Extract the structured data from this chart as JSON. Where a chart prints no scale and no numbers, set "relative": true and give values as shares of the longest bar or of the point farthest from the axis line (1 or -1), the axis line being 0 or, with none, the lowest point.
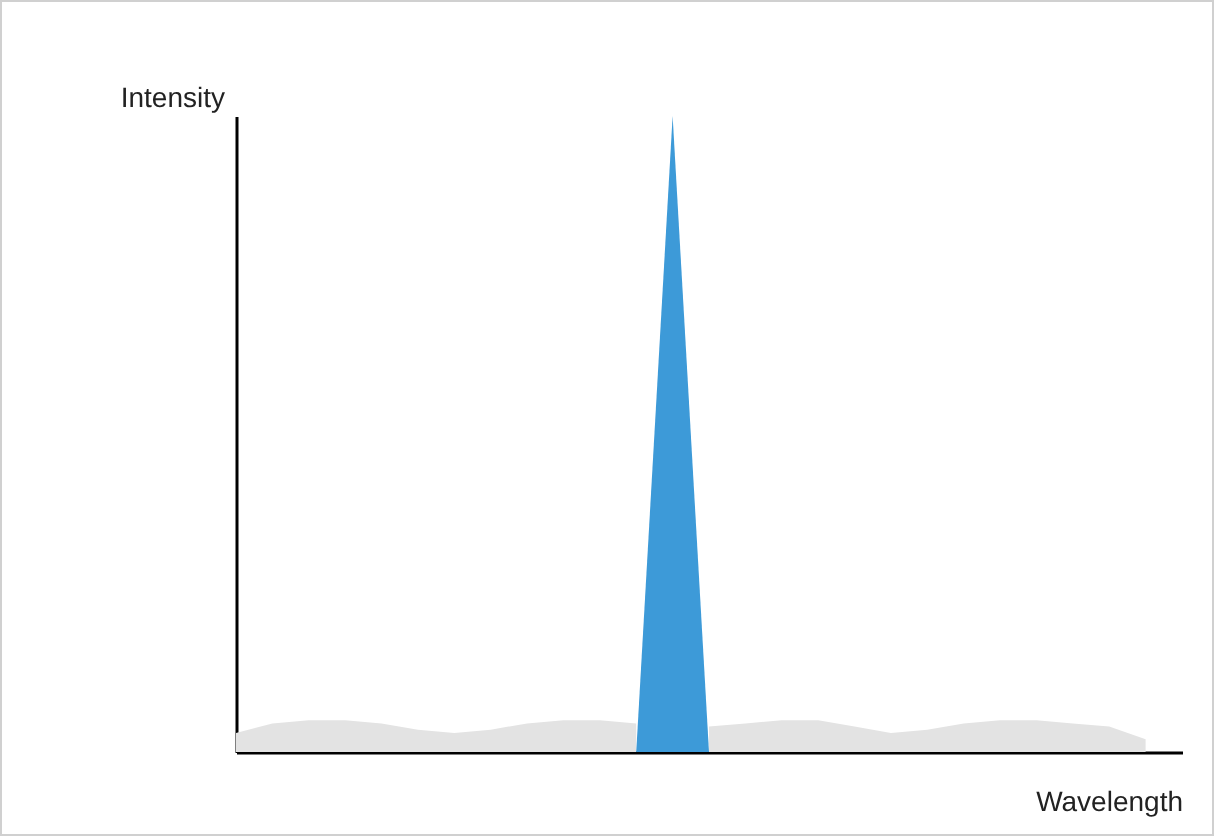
{
  "chart_data": {
    "type": "area",
    "relative": true,
    "xlabel": "Wavelength",
    "ylabel": "Intensity",
    "categories": [
      null,
      null,
      null,
      null,
      null,
      null,
      null,
      null,
      null,
      null,
      null,
      null,
      null,
      null,
      null,
      null,
      null,
      null,
      null,
      null,
      null,
      null,
      null,
      null,
      null,
      null,
      null
    ],
    "series": [
      {
        "color": "#e3e3e3",
        "values": [
          0.03,
          0.045,
          0.05,
          0.05,
          0.045,
          0.035,
          0.03,
          0.035,
          0.045,
          0.05,
          0.05,
          0.045,
          null,
          0.04,
          0.045,
          0.05,
          0.05,
          0.04,
          0.03,
          0.035,
          0.045,
          0.05,
          0.05,
          0.045,
          0.04,
          0.02,
          null
        ]
      },
      {
        "color": "#3d9ad8",
        "values": [
          null,
          null,
          null,
          null,
          null,
          null,
          null,
          null,
          null,
          null,
          null,
          0,
          1,
          0,
          null,
          null,
          null,
          null,
          null,
          null,
          null,
          null,
          null,
          null,
          null,
          null,
          null
        ]
      }
    ]
  }
}
